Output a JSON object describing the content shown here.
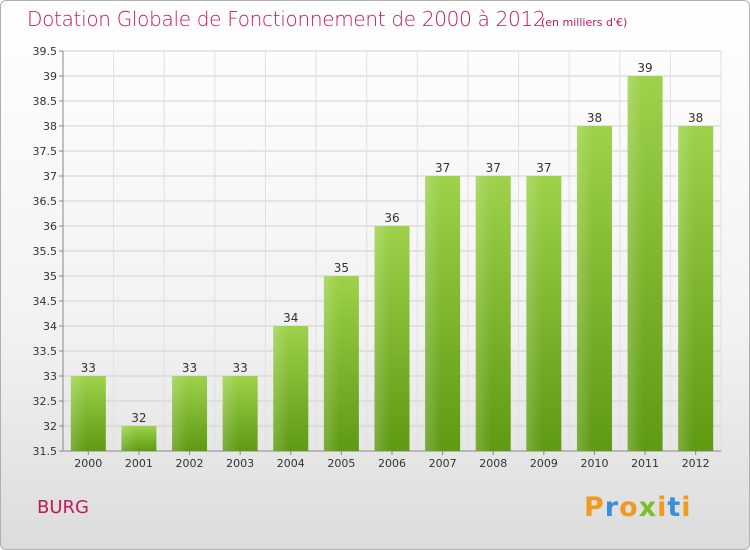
{
  "header": {
    "title": "Dotation Globale de Fonctionnement de 2000 à 2012",
    "unit": "(en milliers d'€)"
  },
  "footer": {
    "commune": "BURG",
    "brand": "Proxiti"
  },
  "colors": {
    "title": "#c2185b",
    "bar_light": "#9ed24a",
    "bar_dark": "#5e9a12",
    "grid": "#cccccc",
    "brand_letters": [
      "#f29a1f",
      "#3a8fd6",
      "#f29a1f",
      "#7bbf2a",
      "#f29a1f",
      "#3a8fd6",
      "#f29a1f"
    ]
  },
  "chart_data": {
    "type": "bar",
    "categories": [
      "2000",
      "2001",
      "2002",
      "2003",
      "2004",
      "2005",
      "2006",
      "2007",
      "2008",
      "2009",
      "2010",
      "2011",
      "2012"
    ],
    "values": [
      33,
      32,
      33,
      33,
      34,
      35,
      36,
      37,
      37,
      37,
      38,
      39,
      38
    ],
    "data_labels": [
      "33",
      "32",
      "33",
      "33",
      "34",
      "35",
      "36",
      "37",
      "37",
      "37",
      "38",
      "39",
      "38"
    ],
    "ylim": [
      31.5,
      39.5
    ],
    "yticks": [
      "31.5",
      "32",
      "32.5",
      "33",
      "33.5",
      "34",
      "34.5",
      "35",
      "35.5",
      "36",
      "36.5",
      "37",
      "37.5",
      "38",
      "38.5",
      "39",
      "39.5"
    ],
    "grid": true,
    "legend": "none"
  }
}
